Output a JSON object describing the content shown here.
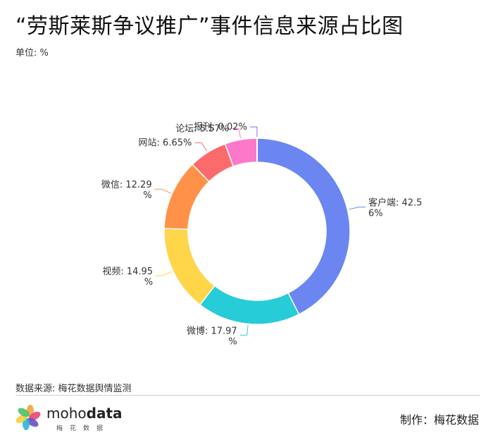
{
  "title": "“劳斯莱斯争议推广”事件信息来源占比图",
  "unit_label": "单位: %",
  "source_label": "数据来源: 梅花数据舆情监测",
  "maker_label": "制作：梅花数据",
  "logo": {
    "text_light": "moho",
    "text_bold": "data",
    "sub": "梅花数据",
    "icon_colors": [
      "#f4a23c",
      "#e6457b",
      "#6a4fc8",
      "#29b6d3",
      "#f5d142",
      "#4fbf6b"
    ]
  },
  "chart_data": {
    "type": "pie",
    "variant": "donut",
    "unit": "%",
    "slices": [
      {
        "name": "客户端",
        "value": 42.56,
        "label_lines": [
          "客户端: 42.5",
          "6%"
        ],
        "color": "#6b86f1"
      },
      {
        "name": "微博",
        "value": 17.97,
        "label_lines": [
          "微博: 17.97",
          "%"
        ],
        "color": "#26ccd8"
      },
      {
        "name": "视频",
        "value": 14.95,
        "label_lines": [
          "视频: 14.95",
          "%"
        ],
        "color": "#ffd54a"
      },
      {
        "name": "微信",
        "value": 12.29,
        "label_lines": [
          "微信: 12.29",
          "%"
        ],
        "color": "#ff9248"
      },
      {
        "name": "网站",
        "value": 6.65,
        "label_lines": [
          "网站: 6.65%"
        ],
        "color": "#fb6b6b"
      },
      {
        "name": "论坛",
        "value": 5.57,
        "label_lines": [
          "论坛: 5.57%"
        ],
        "color": "#fd78c8"
      },
      {
        "name": "报刊",
        "value": 0.02,
        "label_lines": [
          "报刊: 0.02%"
        ],
        "color": "#9b63e8"
      }
    ]
  }
}
